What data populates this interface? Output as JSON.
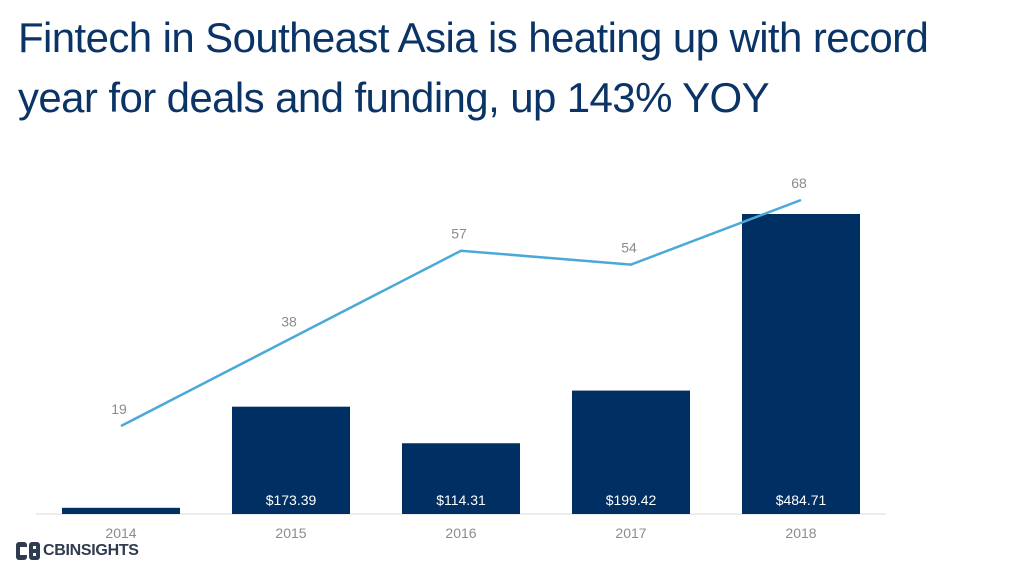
{
  "header": {
    "title": "Fintech in Southeast Asia is heating up with record year for deals and funding, up 143% YOY"
  },
  "logo": {
    "brand_a": "CB",
    "brand_b": "INSIGHTS"
  },
  "chart_data": {
    "type": "bar",
    "categories": [
      "2014",
      "2015",
      "2016",
      "2017",
      "2018"
    ],
    "series": [
      {
        "type": "bar",
        "values": [
          10,
          173.39,
          114.31,
          199.42,
          484.71
        ],
        "labels": [
          "",
          "$173.39",
          "$114.31",
          "$199.42",
          "$484.71"
        ],
        "color": "#002f63"
      },
      {
        "type": "line",
        "values": [
          19,
          38,
          57,
          54,
          68
        ],
        "labels": [
          "19",
          "38",
          "57",
          "54",
          "68"
        ],
        "color": "#4ba9d8"
      }
    ],
    "title": "Fintech in Southeast Asia is heating up with record year for deals and funding, up 143% YOY",
    "xlabel": "",
    "ylabel": "",
    "grid": false,
    "legend": "none"
  }
}
